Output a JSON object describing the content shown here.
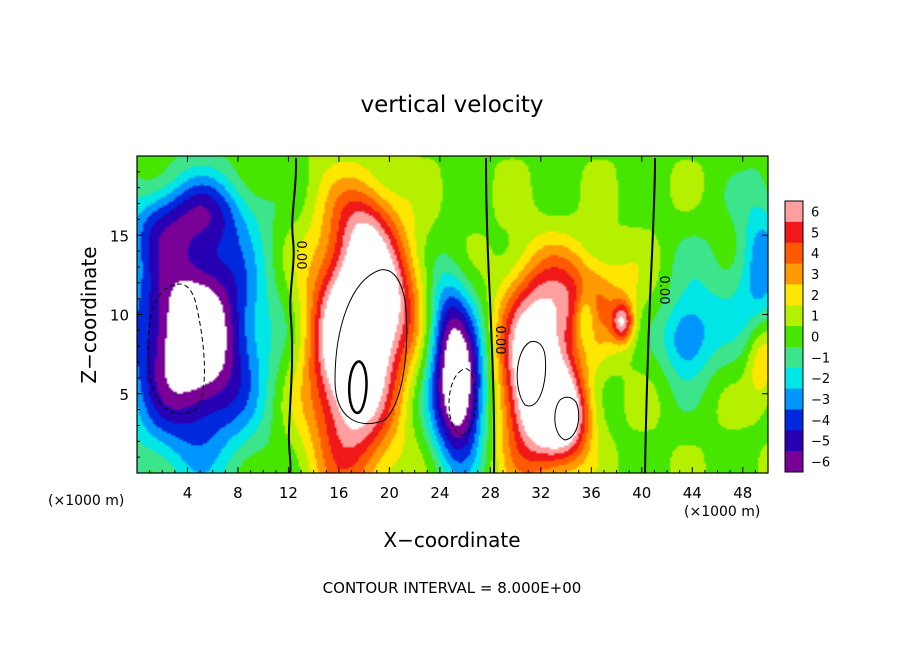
{
  "chart_data": {
    "type": "heatmap",
    "title": "vertical velocity",
    "xlabel": "X−coordinate",
    "ylabel": "Z−coordinate",
    "x_unit_left": "(×1000 m)",
    "x_unit_right": "(×1000 m)",
    "xlim": [
      0,
      50
    ],
    "ylim": [
      0,
      20
    ],
    "x_ticks": [
      4,
      8,
      12,
      16,
      20,
      24,
      28,
      32,
      36,
      40,
      44,
      48
    ],
    "x_tick_labels": [
      "4",
      "8",
      "12",
      "16",
      "20",
      "24",
      "28",
      "32",
      "36",
      "40",
      "44",
      "48"
    ],
    "y_ticks": [
      5,
      10,
      15
    ],
    "y_tick_labels": [
      "5",
      "10",
      "15"
    ],
    "colorbar": {
      "levels": [
        6,
        5,
        4,
        3,
        2,
        1,
        0,
        -1,
        -2,
        -3,
        -4,
        -5,
        -6
      ],
      "labels": [
        "6",
        "5",
        "4",
        "3",
        "2",
        "1",
        "0",
        "−1",
        "−2",
        "−3",
        "−4",
        "−5",
        "−6"
      ],
      "colors": [
        "#ff9e9e",
        "#f01818",
        "#ff5a00",
        "#ff9b00",
        "#ffe600",
        "#b4f000",
        "#46e600",
        "#3ce48c",
        "#00e6e6",
        "#0096ff",
        "#0028dc",
        "#2800b4",
        "#780096"
      ]
    },
    "contour_labels": [
      "0.00",
      "0.00",
      "0.00"
    ],
    "footer": "CONTOUR INTERVAL = 8.000E+00",
    "features": [
      {
        "x": 4.5,
        "z": 8.5,
        "sx": 3.5,
        "sz": 5.0,
        "w": -9
      },
      {
        "x": 5.5,
        "z": 16.5,
        "sx": 2.5,
        "sz": 1.6,
        "w": -3
      },
      {
        "x": 1.5,
        "z": 15.5,
        "sx": 1.8,
        "sz": 1.6,
        "w": -2
      },
      {
        "x": 17.0,
        "z": 7.5,
        "sx": 2.4,
        "sz": 5.5,
        "w": 9
      },
      {
        "x": 19.5,
        "z": 11.0,
        "sx": 2.2,
        "sz": 3.0,
        "w": 5
      },
      {
        "x": 18.0,
        "z": 16.0,
        "sx": 1.6,
        "sz": 1.8,
        "w": 2.5
      },
      {
        "x": 25.5,
        "z": 5.2,
        "sx": 1.5,
        "sz": 3.2,
        "w": -9
      },
      {
        "x": 24.5,
        "z": 10.0,
        "sx": 1.2,
        "sz": 2.5,
        "w": -3
      },
      {
        "x": 31.5,
        "z": 6.0,
        "sx": 2.0,
        "sz": 4.0,
        "w": 9
      },
      {
        "x": 34.0,
        "z": 3.5,
        "sx": 1.4,
        "sz": 2.0,
        "w": 6
      },
      {
        "x": 35.0,
        "z": 11.0,
        "sx": 2.8,
        "sz": 2.2,
        "w": 4
      },
      {
        "x": 35.5,
        "z": 9.8,
        "sx": 0.6,
        "sz": 1.3,
        "w": -3
      },
      {
        "x": 38.5,
        "z": 9.5,
        "sx": 0.6,
        "sz": 0.9,
        "w": 5
      },
      {
        "x": 43.5,
        "z": 8.5,
        "sx": 1.4,
        "sz": 1.8,
        "w": -3.5
      },
      {
        "x": 46.0,
        "z": 11.0,
        "sx": 2.5,
        "sz": 3.0,
        "w": -1.5
      },
      {
        "x": 49.5,
        "z": 13.0,
        "sx": 1.2,
        "sz": 4.0,
        "w": -3
      },
      {
        "x": 49.5,
        "z": 7.0,
        "sx": 0.9,
        "sz": 2.0,
        "w": 3
      }
    ]
  }
}
